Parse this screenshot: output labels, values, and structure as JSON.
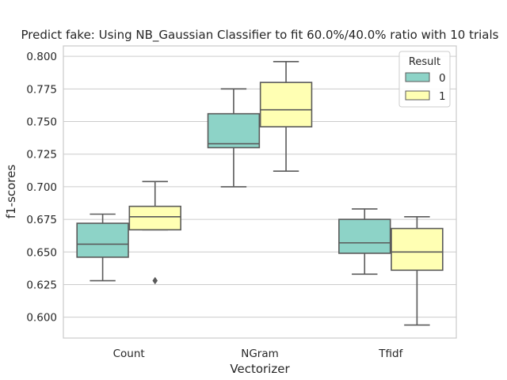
{
  "chart_data": {
    "type": "box",
    "title": "Predict fake: Using NB_Gaussian Classifier to fit 60.0%/40.0% ratio with 10 trials",
    "xlabel": "Vectorizer",
    "ylabel": "f1-scores",
    "categories": [
      "Count",
      "NGram",
      "Tfidf"
    ],
    "ylim": [
      0.584,
      0.808
    ],
    "yticks": [
      0.6,
      0.625,
      0.65,
      0.675,
      0.7,
      0.725,
      0.75,
      0.775,
      0.8
    ],
    "ytick_labels": [
      "0.600",
      "0.625",
      "0.650",
      "0.675",
      "0.700",
      "0.725",
      "0.750",
      "0.775",
      "0.800"
    ],
    "grid": true,
    "legend": {
      "title": "Result",
      "position": "top-right",
      "entries": [
        "0",
        "1"
      ]
    },
    "series": [
      {
        "name": "0",
        "color": "#8dd3c7",
        "boxes": [
          {
            "category": "Count",
            "whisker_low": 0.628,
            "q1": 0.646,
            "median": 0.656,
            "q3": 0.672,
            "whisker_high": 0.679,
            "outliers": []
          },
          {
            "category": "NGram",
            "whisker_low": 0.7,
            "q1": 0.73,
            "median": 0.733,
            "q3": 0.756,
            "whisker_high": 0.775,
            "outliers": []
          },
          {
            "category": "Tfidf",
            "whisker_low": 0.633,
            "q1": 0.649,
            "median": 0.657,
            "q3": 0.675,
            "whisker_high": 0.683,
            "outliers": []
          }
        ]
      },
      {
        "name": "1",
        "color": "#ffffb3",
        "boxes": [
          {
            "category": "Count",
            "whisker_low": 0.667,
            "q1": 0.667,
            "median": 0.677,
            "q3": 0.685,
            "whisker_high": 0.704,
            "outliers": [
              0.628
            ]
          },
          {
            "category": "NGram",
            "whisker_low": 0.712,
            "q1": 0.746,
            "median": 0.759,
            "q3": 0.78,
            "whisker_high": 0.796,
            "outliers": []
          },
          {
            "category": "Tfidf",
            "whisker_low": 0.594,
            "q1": 0.636,
            "median": 0.65,
            "q3": 0.668,
            "whisker_high": 0.677,
            "outliers": []
          }
        ]
      }
    ]
  },
  "colors": {
    "box_edge": "#5a5a5a",
    "grid": "#cccccc",
    "frame": "#cccccc",
    "text": "#262626"
  }
}
